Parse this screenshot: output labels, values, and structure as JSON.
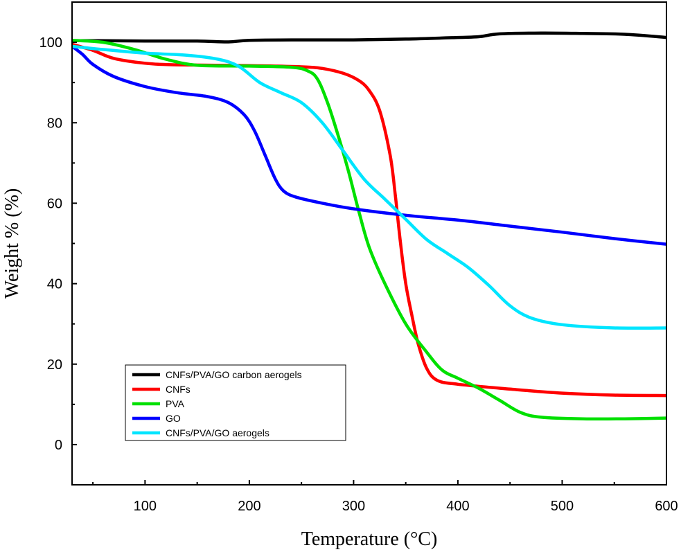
{
  "chart_data": {
    "type": "line",
    "title": "",
    "xlabel": "Temperature (°C)",
    "ylabel": "Weight % (%)",
    "xlim": [
      30,
      600
    ],
    "ylim": [
      -10,
      110
    ],
    "xticks": [
      100,
      200,
      300,
      400,
      500,
      600
    ],
    "xminor": [
      50,
      150,
      250,
      350,
      450,
      550
    ],
    "yticks": [
      0,
      20,
      40,
      60,
      80,
      100
    ],
    "yminor": [
      10,
      30,
      50,
      70,
      90
    ],
    "grid": false,
    "legend_position": "bottom-left",
    "series": [
      {
        "name": "CNFs/PVA/GO carbon aerogels",
        "color": "#000000",
        "points": [
          [
            30,
            100.4
          ],
          [
            60,
            100.4
          ],
          [
            100,
            100.3
          ],
          [
            150,
            100.3
          ],
          [
            180,
            100.1
          ],
          [
            200,
            100.5
          ],
          [
            250,
            100.6
          ],
          [
            300,
            100.6
          ],
          [
            350,
            100.8
          ],
          [
            400,
            101.2
          ],
          [
            420,
            101.4
          ],
          [
            440,
            102.1
          ],
          [
            480,
            102.3
          ],
          [
            520,
            102.2
          ],
          [
            560,
            102.0
          ],
          [
            600,
            101.2
          ]
        ]
      },
      {
        "name": "CNFs",
        "color": "#ff0000",
        "points": [
          [
            30,
            99.5
          ],
          [
            50,
            98.0
          ],
          [
            70,
            96.0
          ],
          [
            100,
            94.8
          ],
          [
            130,
            94.4
          ],
          [
            200,
            94.2
          ],
          [
            250,
            93.9
          ],
          [
            270,
            93.5
          ],
          [
            290,
            92.3
          ],
          [
            305,
            90.5
          ],
          [
            315,
            88.0
          ],
          [
            325,
            83.0
          ],
          [
            335,
            72.0
          ],
          [
            340,
            62.0
          ],
          [
            345,
            50.0
          ],
          [
            350,
            40.0
          ],
          [
            356,
            32.0
          ],
          [
            362,
            25.0
          ],
          [
            370,
            19.0
          ],
          [
            380,
            16.0
          ],
          [
            400,
            15.0
          ],
          [
            450,
            13.8
          ],
          [
            500,
            12.8
          ],
          [
            550,
            12.3
          ],
          [
            600,
            12.2
          ]
        ]
      },
      {
        "name": "PVA",
        "color": "#00e000",
        "points": [
          [
            30,
            100.5
          ],
          [
            60,
            100.0
          ],
          [
            90,
            98.2
          ],
          [
            120,
            95.8
          ],
          [
            150,
            94.3
          ],
          [
            200,
            94.1
          ],
          [
            240,
            93.8
          ],
          [
            255,
            93.0
          ],
          [
            265,
            91.0
          ],
          [
            275,
            85.0
          ],
          [
            285,
            77.0
          ],
          [
            295,
            68.0
          ],
          [
            305,
            58.0
          ],
          [
            315,
            49.0
          ],
          [
            330,
            40.0
          ],
          [
            350,
            30.0
          ],
          [
            370,
            23.0
          ],
          [
            385,
            18.5
          ],
          [
            400,
            16.5
          ],
          [
            420,
            14.0
          ],
          [
            440,
            11.0
          ],
          [
            460,
            8.0
          ],
          [
            480,
            6.8
          ],
          [
            520,
            6.4
          ],
          [
            560,
            6.4
          ],
          [
            600,
            6.6
          ]
        ]
      },
      {
        "name": "GO",
        "color": "#0000ff",
        "points": [
          [
            30,
            99.0
          ],
          [
            40,
            97.0
          ],
          [
            50,
            94.5
          ],
          [
            70,
            91.5
          ],
          [
            100,
            89.0
          ],
          [
            130,
            87.5
          ],
          [
            160,
            86.5
          ],
          [
            180,
            85.0
          ],
          [
            195,
            82.0
          ],
          [
            205,
            78.0
          ],
          [
            215,
            72.0
          ],
          [
            225,
            66.0
          ],
          [
            233,
            63.0
          ],
          [
            245,
            61.5
          ],
          [
            270,
            60.0
          ],
          [
            300,
            58.6
          ],
          [
            350,
            57.0
          ],
          [
            400,
            55.8
          ],
          [
            450,
            54.3
          ],
          [
            500,
            52.8
          ],
          [
            550,
            51.2
          ],
          [
            600,
            49.8
          ]
        ]
      },
      {
        "name": "CNFs/PVA/GO aerogels",
        "color": "#00e5ff",
        "points": [
          [
            30,
            99.0
          ],
          [
            60,
            98.2
          ],
          [
            100,
            97.3
          ],
          [
            140,
            96.8
          ],
          [
            170,
            95.8
          ],
          [
            190,
            94.0
          ],
          [
            210,
            90.0
          ],
          [
            230,
            87.5
          ],
          [
            250,
            85.0
          ],
          [
            270,
            80.0
          ],
          [
            290,
            73.0
          ],
          [
            310,
            66.0
          ],
          [
            330,
            61.0
          ],
          [
            350,
            56.0
          ],
          [
            370,
            51.0
          ],
          [
            390,
            47.5
          ],
          [
            410,
            44.0
          ],
          [
            430,
            39.5
          ],
          [
            450,
            34.5
          ],
          [
            470,
            31.5
          ],
          [
            500,
            29.8
          ],
          [
            550,
            29.0
          ],
          [
            600,
            29.0
          ]
        ]
      }
    ]
  }
}
